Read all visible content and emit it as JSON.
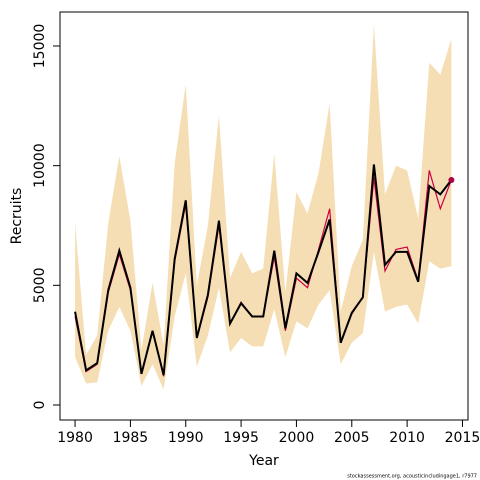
{
  "chart_data": {
    "type": "line",
    "xlabel": "Year",
    "ylabel": "Recruits",
    "footnote": "stockassessment.org, acousticincludingage1, r7977",
    "x": [
      1980,
      1981,
      1982,
      1983,
      1984,
      1985,
      1986,
      1987,
      1988,
      1989,
      1990,
      1991,
      1992,
      1993,
      1994,
      1995,
      1996,
      1997,
      1998,
      1999,
      2000,
      2001,
      2002,
      2003,
      2004,
      2005,
      2006,
      2007,
      2008,
      2009,
      2010,
      2011,
      2012,
      2013,
      2014
    ],
    "band": {
      "color": "#f5deb3",
      "upper": [
        7600,
        2100,
        2900,
        7600,
        10400,
        7700,
        2300,
        5100,
        2500,
        10100,
        13400,
        5000,
        7500,
        12100,
        5300,
        6400,
        5500,
        5700,
        10500,
        4700,
        8900,
        8000,
        9700,
        12600,
        3900,
        5800,
        6900,
        15900,
        8800,
        10000,
        9800,
        7800,
        14300,
        13800,
        15300
      ],
      "lower": [
        2000,
        900,
        950,
        3100,
        4100,
        3100,
        800,
        1700,
        650,
        3700,
        5500,
        1600,
        2900,
        4900,
        2200,
        2800,
        2450,
        2450,
        4000,
        2000,
        3500,
        3200,
        4200,
        4800,
        1700,
        2600,
        3000,
        6400,
        3900,
        4100,
        4200,
        3400,
        6000,
        5700,
        5800
      ]
    },
    "series": [
      {
        "color": "#cc0044",
        "values": [
          3700,
          1400,
          1700,
          4700,
          6300,
          4800,
          1300,
          3100,
          1200,
          6000,
          8400,
          2800,
          4500,
          7500,
          3400,
          4300,
          3700,
          3700,
          6200,
          3100,
          5300,
          4900,
          6500,
          8200,
          2600,
          3800,
          4500,
          9500,
          5600,
          6500,
          6600,
          5200,
          9800,
          8200,
          9400
        ]
      },
      {
        "color": "#000000",
        "values": [
          3900,
          1450,
          1750,
          4800,
          6450,
          4900,
          1300,
          3100,
          1250,
          6100,
          8550,
          2800,
          4600,
          7700,
          3400,
          4250,
          3700,
          3700,
          6450,
          3200,
          5500,
          5100,
          6400,
          7750,
          2600,
          3850,
          4500,
          10050,
          5850,
          6400,
          6400,
          5150,
          9150,
          8800,
          9400
        ]
      }
    ],
    "point": {
      "x": 2014,
      "y": 9400,
      "color": "#aa0044"
    },
    "xlim": [
      1978.64,
      2015.5
    ],
    "ylim": [
      -627,
      16420
    ],
    "xticks": [
      1980,
      1985,
      1990,
      1995,
      2000,
      2005,
      2010,
      2015
    ],
    "yticks": [
      0,
      5000,
      10000,
      15000
    ]
  }
}
